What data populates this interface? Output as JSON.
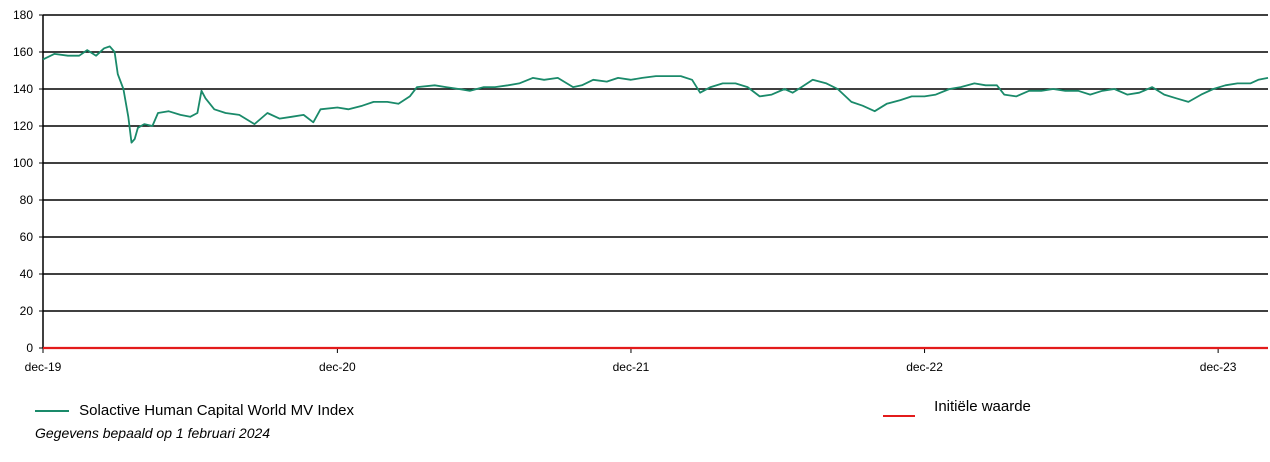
{
  "chart_data": {
    "type": "line",
    "title": "",
    "xlabel": "",
    "ylabel": "",
    "ylim": [
      0,
      180
    ],
    "y_ticks": [
      0,
      20,
      40,
      60,
      80,
      100,
      120,
      140,
      160,
      180
    ],
    "x_range": [
      "2019-12-01",
      "2024-02-01"
    ],
    "x_ticks": [
      {
        "date": "2019-12-01",
        "label": "dec-19"
      },
      {
        "date": "2020-12-01",
        "label": "dec-20"
      },
      {
        "date": "2021-12-01",
        "label": "dec-21"
      },
      {
        "date": "2022-12-01",
        "label": "dec-22"
      },
      {
        "date": "2023-12-01",
        "label": "dec-23"
      }
    ],
    "grid": "horizontal",
    "series": [
      {
        "name": "Solactive Human Capital World MV Index",
        "color": "#1a8a6a",
        "points": [
          [
            "2019-12-01",
            156
          ],
          [
            "2019-12-15",
            159
          ],
          [
            "2020-01-01",
            158
          ],
          [
            "2020-01-15",
            158
          ],
          [
            "2020-01-25",
            161
          ],
          [
            "2020-02-05",
            158
          ],
          [
            "2020-02-15",
            162
          ],
          [
            "2020-02-22",
            163
          ],
          [
            "2020-02-28",
            160
          ],
          [
            "2020-03-03",
            148
          ],
          [
            "2020-03-10",
            140
          ],
          [
            "2020-03-16",
            125
          ],
          [
            "2020-03-20",
            111
          ],
          [
            "2020-03-24",
            113
          ],
          [
            "2020-03-28",
            119
          ],
          [
            "2020-04-05",
            121
          ],
          [
            "2020-04-15",
            120
          ],
          [
            "2020-04-22",
            127
          ],
          [
            "2020-05-05",
            128
          ],
          [
            "2020-05-20",
            126
          ],
          [
            "2020-06-01",
            125
          ],
          [
            "2020-06-10",
            127
          ],
          [
            "2020-06-15",
            139
          ],
          [
            "2020-06-20",
            135
          ],
          [
            "2020-07-01",
            129
          ],
          [
            "2020-07-15",
            127
          ],
          [
            "2020-08-01",
            126
          ],
          [
            "2020-08-20",
            121
          ],
          [
            "2020-09-05",
            127
          ],
          [
            "2020-09-20",
            124
          ],
          [
            "2020-10-05",
            125
          ],
          [
            "2020-10-20",
            126
          ],
          [
            "2020-11-01",
            122
          ],
          [
            "2020-11-10",
            129
          ],
          [
            "2020-12-01",
            130
          ],
          [
            "2020-12-15",
            129
          ],
          [
            "2021-01-01",
            131
          ],
          [
            "2021-01-15",
            133
          ],
          [
            "2021-02-01",
            133
          ],
          [
            "2021-02-15",
            132
          ],
          [
            "2021-03-01",
            136
          ],
          [
            "2021-03-10",
            141
          ],
          [
            "2021-04-01",
            142
          ],
          [
            "2021-04-15",
            141
          ],
          [
            "2021-05-01",
            140
          ],
          [
            "2021-05-15",
            139
          ],
          [
            "2021-06-01",
            141
          ],
          [
            "2021-06-15",
            141
          ],
          [
            "2021-07-01",
            142
          ],
          [
            "2021-07-15",
            143
          ],
          [
            "2021-08-01",
            146
          ],
          [
            "2021-08-15",
            145
          ],
          [
            "2021-09-01",
            146
          ],
          [
            "2021-09-20",
            141
          ],
          [
            "2021-10-01",
            142
          ],
          [
            "2021-10-15",
            145
          ],
          [
            "2021-11-01",
            144
          ],
          [
            "2021-11-15",
            146
          ],
          [
            "2021-12-01",
            145
          ],
          [
            "2021-12-15",
            146
          ],
          [
            "2022-01-01",
            147
          ],
          [
            "2022-01-15",
            147
          ],
          [
            "2022-02-01",
            147
          ],
          [
            "2022-02-15",
            145
          ],
          [
            "2022-02-25",
            138
          ],
          [
            "2022-03-10",
            141
          ],
          [
            "2022-03-25",
            143
          ],
          [
            "2022-04-10",
            143
          ],
          [
            "2022-04-25",
            141
          ],
          [
            "2022-05-10",
            136
          ],
          [
            "2022-05-25",
            137
          ],
          [
            "2022-06-10",
            140
          ],
          [
            "2022-06-20",
            138
          ],
          [
            "2022-07-01",
            141
          ],
          [
            "2022-07-15",
            145
          ],
          [
            "2022-08-01",
            143
          ],
          [
            "2022-08-15",
            140
          ],
          [
            "2022-09-01",
            133
          ],
          [
            "2022-09-15",
            131
          ],
          [
            "2022-09-30",
            128
          ],
          [
            "2022-10-15",
            132
          ],
          [
            "2022-11-01",
            134
          ],
          [
            "2022-11-15",
            136
          ],
          [
            "2022-12-01",
            136
          ],
          [
            "2022-12-15",
            137
          ],
          [
            "2023-01-01",
            140
          ],
          [
            "2023-01-15",
            141
          ],
          [
            "2023-02-01",
            143
          ],
          [
            "2023-02-15",
            142
          ],
          [
            "2023-03-01",
            142
          ],
          [
            "2023-03-10",
            137
          ],
          [
            "2023-03-25",
            136
          ],
          [
            "2023-04-10",
            139
          ],
          [
            "2023-04-25",
            139
          ],
          [
            "2023-05-10",
            140
          ],
          [
            "2023-05-25",
            139
          ],
          [
            "2023-06-10",
            139
          ],
          [
            "2023-06-25",
            137
          ],
          [
            "2023-07-10",
            139
          ],
          [
            "2023-07-25",
            140
          ],
          [
            "2023-08-10",
            137
          ],
          [
            "2023-08-25",
            138
          ],
          [
            "2023-09-10",
            141
          ],
          [
            "2023-09-25",
            137
          ],
          [
            "2023-10-10",
            135
          ],
          [
            "2023-10-25",
            133
          ],
          [
            "2023-11-10",
            137
          ],
          [
            "2023-11-25",
            140
          ],
          [
            "2023-12-10",
            142
          ],
          [
            "2023-12-25",
            143
          ],
          [
            "2024-01-10",
            143
          ],
          [
            "2024-01-20",
            145
          ],
          [
            "2024-02-01",
            146
          ]
        ]
      },
      {
        "name": "Initiële waarde",
        "color": "#e31b1b",
        "points": [
          [
            "2019-12-01",
            0
          ],
          [
            "2024-02-01",
            0
          ]
        ]
      }
    ],
    "legend": "bottom"
  },
  "footnote": "Gegevens bepaald op  1 februari 2024"
}
